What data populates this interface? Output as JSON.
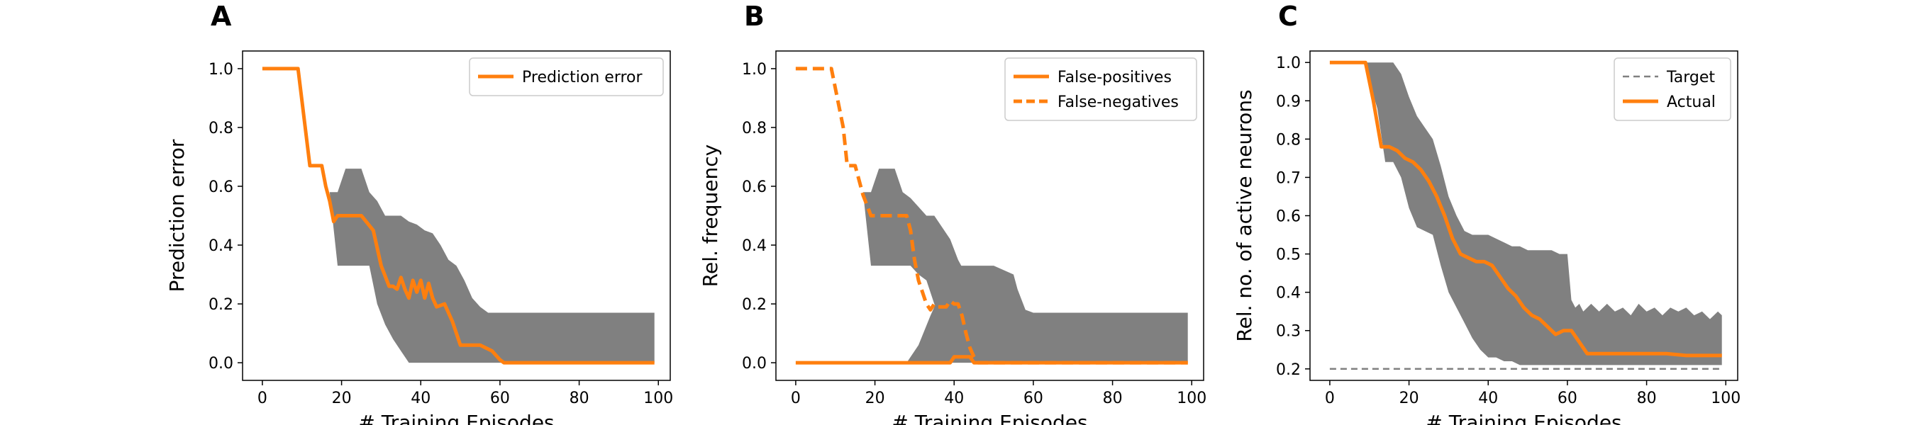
{
  "chart_data": [
    {
      "panel": "A",
      "type": "line",
      "xlabel": "# Training Episodes",
      "ylabel": "Prediction error",
      "xlim": [
        -5,
        103
      ],
      "ylim": [
        -0.06,
        1.06
      ],
      "xticks": [
        0,
        20,
        40,
        60,
        80,
        100
      ],
      "yticks": [
        0.0,
        0.2,
        0.4,
        0.6,
        0.8,
        1.0
      ],
      "legend_position": "upper right",
      "colors": {
        "line": "#ff7f0e",
        "band": "#808080"
      },
      "band": {
        "x": [
          17,
          19,
          21,
          23,
          25,
          27,
          29,
          31,
          33,
          35,
          37,
          39,
          41,
          43,
          45,
          47,
          49,
          51,
          53,
          55,
          57,
          59,
          61,
          99
        ],
        "lower": [
          0.58,
          0.33,
          0.33,
          0.33,
          0.33,
          0.33,
          0.2,
          0.13,
          0.08,
          0.04,
          0.0,
          0.0,
          0.0,
          0.0,
          0.0,
          0.0,
          0.0,
          0.0,
          0.0,
          0.0,
          0.0,
          0.0,
          0.0,
          0.0
        ],
        "upper": [
          0.58,
          0.58,
          0.66,
          0.66,
          0.66,
          0.58,
          0.55,
          0.5,
          0.5,
          0.5,
          0.48,
          0.47,
          0.45,
          0.44,
          0.4,
          0.35,
          0.33,
          0.28,
          0.22,
          0.19,
          0.17,
          0.17,
          0.17,
          0.17
        ]
      },
      "series": [
        {
          "name": "Prediction error",
          "style": "solid",
          "x": [
            0,
            9,
            12,
            15,
            16,
            17,
            18,
            19,
            20,
            25,
            28,
            30,
            32,
            33,
            34,
            35,
            36,
            37,
            38,
            39,
            40,
            41,
            42,
            43,
            44,
            46,
            48,
            49,
            50,
            53,
            55,
            58,
            60,
            61,
            99
          ],
          "y": [
            1.0,
            1.0,
            0.67,
            0.67,
            0.6,
            0.55,
            0.48,
            0.5,
            0.5,
            0.5,
            0.45,
            0.33,
            0.26,
            0.26,
            0.25,
            0.29,
            0.25,
            0.22,
            0.28,
            0.24,
            0.28,
            0.22,
            0.27,
            0.22,
            0.19,
            0.2,
            0.14,
            0.1,
            0.06,
            0.06,
            0.06,
            0.04,
            0.01,
            0.0,
            0.0
          ]
        }
      ]
    },
    {
      "panel": "B",
      "type": "line",
      "xlabel": "# Training Episodes",
      "ylabel": "Rel. frequency",
      "xlim": [
        -5,
        103
      ],
      "ylim": [
        -0.06,
        1.06
      ],
      "xticks": [
        0,
        20,
        40,
        60,
        80,
        100
      ],
      "yticks": [
        0.0,
        0.2,
        0.4,
        0.6,
        0.8,
        1.0
      ],
      "legend_position": "upper right",
      "colors": {
        "line": "#ff7f0e",
        "band": "#808080"
      },
      "bands": [
        {
          "x": [
            17,
            19,
            21,
            23,
            25,
            27,
            29,
            31,
            33,
            35,
            37,
            39,
            41,
            43,
            45,
            47
          ],
          "lower": [
            0.58,
            0.33,
            0.33,
            0.33,
            0.33,
            0.33,
            0.33,
            0.3,
            0.28,
            0.2,
            0.15,
            0.1,
            0.05,
            0.02,
            0.0,
            0.0
          ],
          "upper": [
            0.58,
            0.58,
            0.66,
            0.66,
            0.66,
            0.58,
            0.56,
            0.53,
            0.5,
            0.5,
            0.46,
            0.42,
            0.35,
            0.3,
            0.22,
            0.0
          ]
        },
        {
          "x": [
            28,
            31,
            34,
            37,
            39,
            41,
            43,
            45,
            50,
            55,
            56,
            58,
            60,
            99
          ],
          "lower": [
            0.0,
            0.0,
            0.0,
            0.0,
            0.0,
            0.0,
            0.0,
            0.0,
            0.0,
            0.0,
            0.0,
            0.0,
            0.0,
            0.0
          ],
          "upper": [
            0.0,
            0.06,
            0.16,
            0.25,
            0.33,
            0.33,
            0.33,
            0.33,
            0.33,
            0.3,
            0.25,
            0.18,
            0.17,
            0.17
          ]
        }
      ],
      "series": [
        {
          "name": "False-positives",
          "style": "solid",
          "x": [
            0,
            39,
            40,
            44,
            45,
            46,
            99
          ],
          "y": [
            0.0,
            0.0,
            0.02,
            0.02,
            0.0,
            0.0,
            0.0
          ]
        },
        {
          "name": "False-negatives",
          "style": "dashed",
          "x": [
            0,
            9,
            12,
            13,
            15,
            16,
            17,
            19,
            20,
            25,
            28,
            29,
            30,
            31,
            32,
            33,
            34,
            35,
            36,
            37,
            38,
            39,
            40,
            41,
            42,
            43,
            44,
            45,
            46,
            99
          ],
          "y": [
            1.0,
            1.0,
            0.8,
            0.67,
            0.67,
            0.62,
            0.57,
            0.5,
            0.5,
            0.5,
            0.5,
            0.45,
            0.35,
            0.28,
            0.24,
            0.2,
            0.18,
            0.2,
            0.19,
            0.19,
            0.19,
            0.21,
            0.2,
            0.2,
            0.16,
            0.1,
            0.05,
            0.02,
            0.0,
            0.0
          ]
        }
      ]
    },
    {
      "panel": "C",
      "type": "line",
      "xlabel": "# Training Episodes",
      "ylabel": "Rel. no. of active neurons",
      "xlim": [
        -5,
        103
      ],
      "ylim": [
        0.17,
        1.03
      ],
      "xticks": [
        0,
        20,
        40,
        60,
        80,
        100
      ],
      "yticks": [
        0.2,
        0.3,
        0.4,
        0.5,
        0.6,
        0.7,
        0.8,
        0.9,
        1.0
      ],
      "legend_position": "upper right",
      "colors": {
        "line": "#ff7f0e",
        "band": "#808080",
        "target": "#808080"
      },
      "band": {
        "x": [
          9,
          10,
          12,
          14,
          16,
          18,
          20,
          22,
          24,
          26,
          28,
          30,
          32,
          34,
          36,
          38,
          40,
          42,
          44,
          46,
          48,
          50,
          52,
          54,
          56,
          58,
          60,
          61,
          62,
          63,
          64,
          66,
          68,
          70,
          72,
          74,
          76,
          78,
          80,
          82,
          84,
          86,
          88,
          90,
          92,
          94,
          96,
          98,
          99
        ],
        "lower": [
          1.0,
          0.95,
          0.88,
          0.74,
          0.74,
          0.7,
          0.62,
          0.57,
          0.56,
          0.55,
          0.47,
          0.4,
          0.36,
          0.32,
          0.28,
          0.25,
          0.23,
          0.23,
          0.22,
          0.22,
          0.21,
          0.21,
          0.21,
          0.21,
          0.21,
          0.21,
          0.21,
          0.21,
          0.21,
          0.21,
          0.21,
          0.21,
          0.21,
          0.21,
          0.21,
          0.21,
          0.21,
          0.21,
          0.21,
          0.21,
          0.21,
          0.21,
          0.21,
          0.21,
          0.21,
          0.21,
          0.21,
          0.21,
          0.21
        ],
        "upper": [
          1.0,
          1.0,
          1.0,
          1.0,
          1.0,
          0.97,
          0.91,
          0.86,
          0.83,
          0.8,
          0.73,
          0.65,
          0.6,
          0.56,
          0.55,
          0.55,
          0.55,
          0.54,
          0.53,
          0.52,
          0.52,
          0.51,
          0.51,
          0.51,
          0.51,
          0.5,
          0.5,
          0.38,
          0.36,
          0.37,
          0.35,
          0.37,
          0.35,
          0.37,
          0.35,
          0.36,
          0.34,
          0.37,
          0.35,
          0.36,
          0.34,
          0.36,
          0.35,
          0.36,
          0.34,
          0.35,
          0.33,
          0.35,
          0.34
        ]
      },
      "series": [
        {
          "name": "Target",
          "style": "dashed",
          "x": [
            0,
            99
          ],
          "y": [
            0.2,
            0.2
          ]
        },
        {
          "name": "Actual",
          "style": "solid",
          "x": [
            0,
            9,
            11,
            13,
            15,
            17,
            19,
            21,
            23,
            25,
            27,
            29,
            31,
            33,
            35,
            37,
            39,
            41,
            43,
            45,
            47,
            49,
            51,
            53,
            55,
            57,
            59,
            61,
            63,
            65,
            67,
            70,
            75,
            80,
            85,
            90,
            95,
            99
          ],
          "y": [
            1.0,
            1.0,
            0.9,
            0.78,
            0.78,
            0.77,
            0.75,
            0.74,
            0.72,
            0.69,
            0.65,
            0.6,
            0.54,
            0.5,
            0.49,
            0.48,
            0.48,
            0.47,
            0.44,
            0.41,
            0.39,
            0.36,
            0.34,
            0.33,
            0.31,
            0.29,
            0.3,
            0.3,
            0.27,
            0.24,
            0.24,
            0.24,
            0.24,
            0.24,
            0.24,
            0.235,
            0.235,
            0.235
          ]
        }
      ]
    }
  ]
}
